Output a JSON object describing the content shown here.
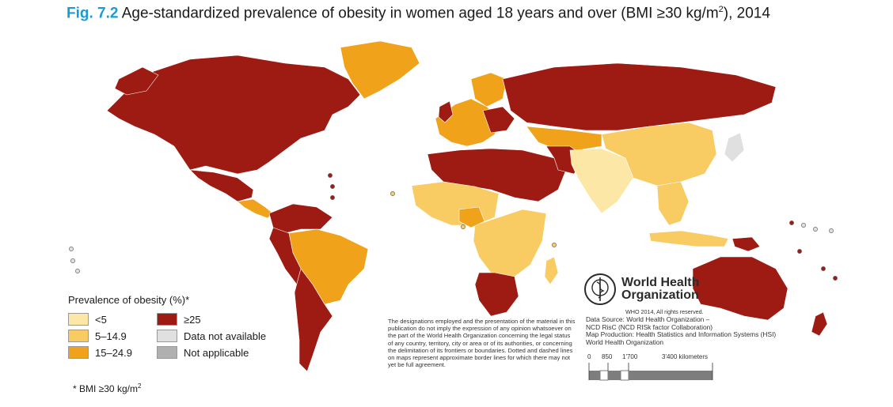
{
  "title": {
    "fig_label": "Fig. 7.2",
    "text": "Age-standardized prevalence of obesity in women aged 18 years and over (BMI ≥30 kg/m",
    "superscript": "2",
    "suffix": "), 2014"
  },
  "legend": {
    "title": "Prevalence of obesity (%)*",
    "items": [
      {
        "label": "<5",
        "color": "#fce7a6"
      },
      {
        "label": "≥25",
        "color": "#9e1b13"
      },
      {
        "label": "5–14.9",
        "color": "#f8cb63"
      },
      {
        "label": "Data not available",
        "color": "#e0e0e0"
      },
      {
        "label": "15–24.9",
        "color": "#f0a21a"
      },
      {
        "label": "Not applicable",
        "color": "#b0b0b0"
      }
    ]
  },
  "footnote": {
    "text": "* BMI ≥30 kg/m",
    "superscript": "2"
  },
  "disclaimer": "The designations employed and the presentation of the material in this publication do not imply the expression of any opinion whatsoever on the part of the World Health Organization concerning the legal status of any country, territory, city or area or of its authorities, or concerning the delimitation of its frontiers or boundaries. Dotted and dashed lines on maps represent approximate border lines for which there may not yet be full agreement.",
  "who": {
    "name_line1": "World Health",
    "name_line2": "Organization",
    "rights": "WHO 2014, All rights reserved.",
    "source_line1": "Data Source: World Health Organization –",
    "source_line2": "NCD RisC (NCD RISk factor Collaboration)",
    "production_line1": "Map Production: Health Statistics and Information Systems (HSI)",
    "production_line2": "World Health Organization"
  },
  "scale": {
    "ticks": [
      "0",
      "850",
      "1'700",
      "3'400 kilometers"
    ]
  },
  "colors": {
    "lt5": "#fce7a6",
    "c5_15": "#f8cb63",
    "c15_25": "#f0a21a",
    "ge25": "#9e1b13",
    "na": "#e0e0e0",
    "not_applicable": "#b0b0b0"
  }
}
